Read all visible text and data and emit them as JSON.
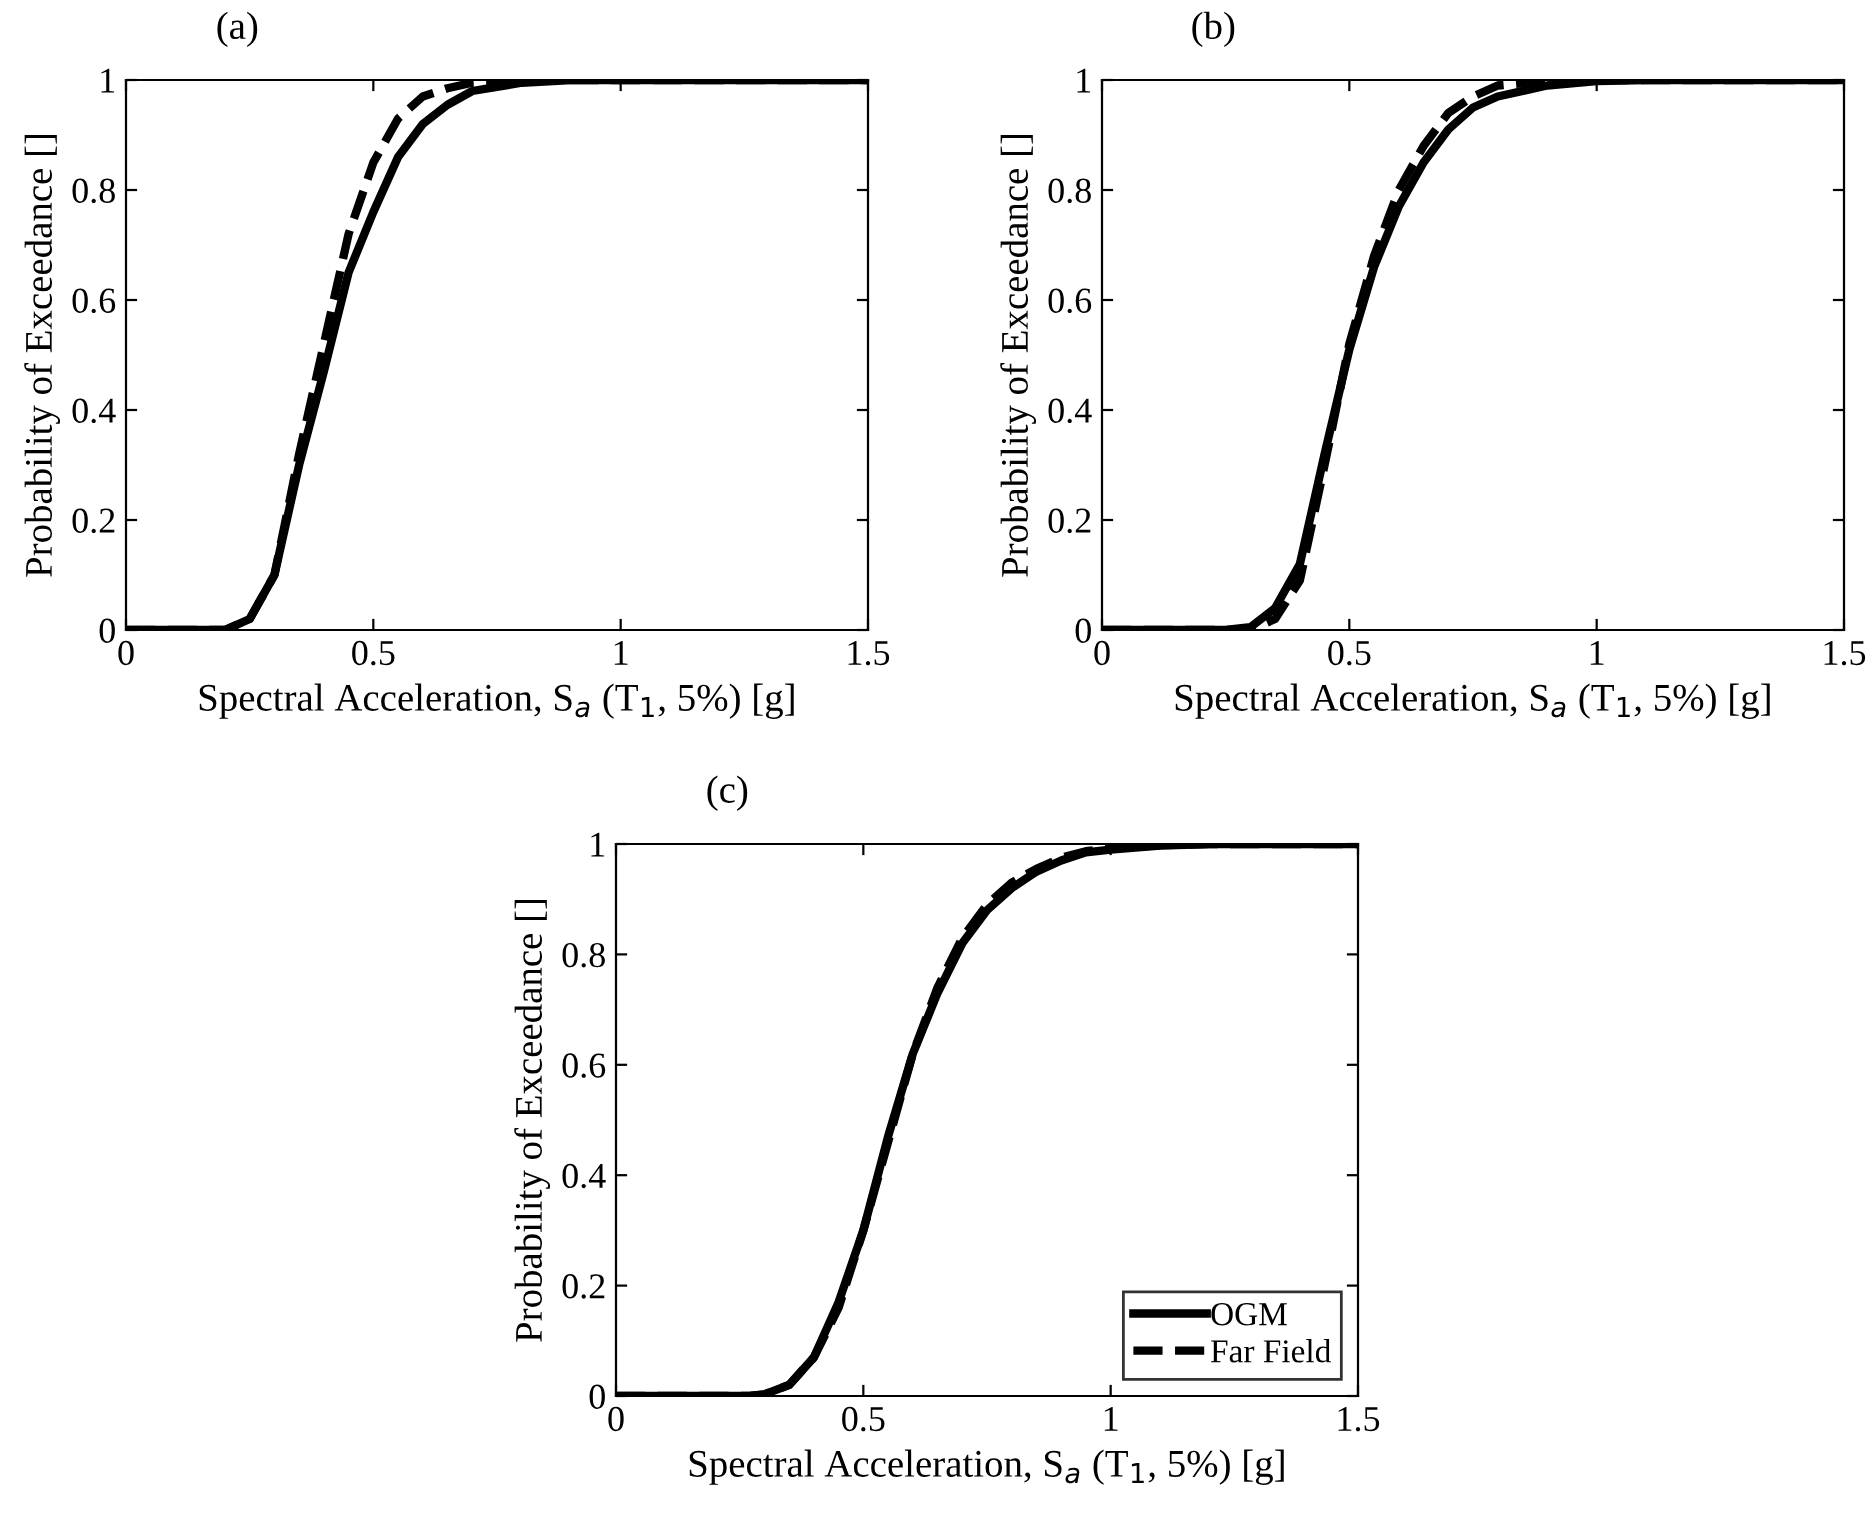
{
  "chart_data": [
    {
      "type": "line",
      "title": "(a)",
      "xlabel": "Spectral Acceleration, S$_{a}$ (T$_{1}$, 5%) [g]",
      "ylabel": "Probability of Exceedance []",
      "xlim": [
        0,
        1.5
      ],
      "ylim": [
        0,
        1
      ],
      "xticks": [
        0,
        0.5,
        1,
        1.5
      ],
      "yticks": [
        0,
        0.2,
        0.4,
        0.6,
        0.8,
        1
      ],
      "grid": false,
      "legend": false,
      "marker": "none",
      "series": [
        {
          "color": "#000000",
          "line_style": "solid",
          "x": [
            0,
            0.2,
            0.25,
            0.3,
            0.35,
            0.4,
            0.45,
            0.5,
            0.55,
            0.6,
            0.65,
            0.7,
            0.8,
            0.9,
            1.5
          ],
          "values": [
            0,
            0,
            0.02,
            0.1,
            0.3,
            0.47,
            0.65,
            0.76,
            0.86,
            0.92,
            0.955,
            0.98,
            0.995,
            1,
            1
          ]
        },
        {
          "color": "#000000",
          "line_style": "dashed",
          "x": [
            0,
            0.2,
            0.25,
            0.3,
            0.35,
            0.4,
            0.45,
            0.5,
            0.55,
            0.6,
            0.65,
            0.7,
            0.8,
            1.5
          ],
          "values": [
            0,
            0,
            0.02,
            0.1,
            0.32,
            0.52,
            0.72,
            0.85,
            0.93,
            0.97,
            0.985,
            0.995,
            1,
            1
          ]
        }
      ]
    },
    {
      "type": "line",
      "title": "(b)",
      "xlabel": "Spectral Acceleration, S$_{a}$ (T$_{1}$, 5%) [g]",
      "ylabel": "Probability of Exceedance []",
      "xlim": [
        0,
        1.5
      ],
      "ylim": [
        0,
        1
      ],
      "xticks": [
        0,
        0.5,
        1,
        1.5
      ],
      "yticks": [
        0,
        0.2,
        0.4,
        0.6,
        0.8,
        1
      ],
      "grid": false,
      "legend": false,
      "marker": "none",
      "series": [
        {
          "color": "#000000",
          "line_style": "solid",
          "x": [
            0,
            0.25,
            0.3,
            0.35,
            0.4,
            0.45,
            0.5,
            0.55,
            0.6,
            0.65,
            0.7,
            0.75,
            0.8,
            0.9,
            1.0,
            1.1,
            1.5
          ],
          "values": [
            0,
            0,
            0.005,
            0.04,
            0.12,
            0.32,
            0.51,
            0.66,
            0.77,
            0.85,
            0.91,
            0.95,
            0.97,
            0.99,
            0.998,
            1,
            1
          ]
        },
        {
          "color": "#000000",
          "line_style": "dashed",
          "x": [
            0,
            0.3,
            0.35,
            0.4,
            0.45,
            0.5,
            0.55,
            0.6,
            0.65,
            0.7,
            0.75,
            0.8,
            0.9,
            1.0,
            1.5
          ],
          "values": [
            0,
            0,
            0.02,
            0.09,
            0.3,
            0.52,
            0.68,
            0.8,
            0.88,
            0.94,
            0.97,
            0.99,
            0.998,
            1,
            1
          ]
        }
      ]
    },
    {
      "type": "line",
      "title": "(c)",
      "xlabel": "Spectral Acceleration, S$_{a}$ (T$_{1}$, 5%) [g]",
      "ylabel": "Probability of Exceedance []",
      "xlim": [
        0,
        1.5
      ],
      "ylim": [
        0,
        1
      ],
      "xticks": [
        0,
        0.5,
        1,
        1.5
      ],
      "yticks": [
        0,
        0.2,
        0.4,
        0.6,
        0.8,
        1
      ],
      "grid": false,
      "legend": "bottom right",
      "marker": "none",
      "series": [
        {
          "name": "OGM",
          "color": "#000000",
          "line_style": "solid",
          "x": [
            0,
            0.27,
            0.3,
            0.35,
            0.4,
            0.45,
            0.5,
            0.55,
            0.6,
            0.65,
            0.7,
            0.75,
            0.8,
            0.85,
            0.9,
            0.95,
            1.0,
            1.1,
            1.2,
            1.5
          ],
          "values": [
            0,
            0,
            0.003,
            0.02,
            0.07,
            0.17,
            0.3,
            0.47,
            0.62,
            0.73,
            0.82,
            0.88,
            0.92,
            0.95,
            0.97,
            0.985,
            0.99,
            0.997,
            1,
            1
          ]
        },
        {
          "name": "Far Field",
          "color": "#000000",
          "line_style": "dashed",
          "x": [
            0,
            0.27,
            0.3,
            0.35,
            0.4,
            0.45,
            0.5,
            0.55,
            0.6,
            0.65,
            0.7,
            0.75,
            0.8,
            0.85,
            0.9,
            0.95,
            1.0,
            1.1,
            1.2,
            1.5
          ],
          "values": [
            0,
            0,
            0.003,
            0.02,
            0.07,
            0.16,
            0.3,
            0.46,
            0.62,
            0.74,
            0.83,
            0.89,
            0.93,
            0.955,
            0.975,
            0.987,
            0.992,
            0.998,
            1,
            1
          ]
        }
      ]
    }
  ]
}
